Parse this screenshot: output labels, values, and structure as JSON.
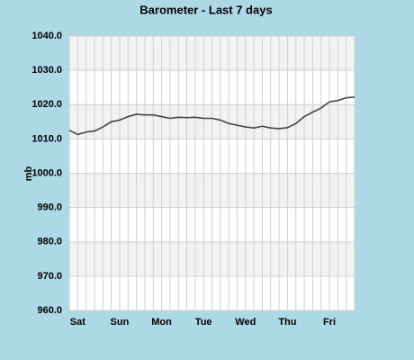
{
  "chart_data": {
    "type": "line",
    "title": "Barometer - Last 7 days",
    "y_label": "mb",
    "categories": [
      null,
      "Sat",
      null,
      null,
      null,
      null,
      "Sun",
      null,
      null,
      null,
      null,
      "Mon",
      null,
      null,
      null,
      null,
      "Tue",
      null,
      null,
      null,
      null,
      "Wed",
      null,
      null,
      null,
      null,
      "Thu",
      null,
      null,
      null,
      null,
      "Fri",
      null,
      null,
      null
    ],
    "values": [
      1012.5,
      1011.3,
      1012,
      1012.3,
      1013.5,
      1015,
      1015.5,
      1016.5,
      1017.2,
      1017,
      1017,
      1016.5,
      1016,
      1016.3,
      1016.2,
      1016.3,
      1016,
      1016,
      1015.5,
      1014.5,
      1014,
      1013.5,
      1013.2,
      1013.7,
      1013.2,
      1013,
      1013.3,
      1014.5,
      1016.5,
      1017.8,
      1019,
      1020.8,
      1021.2,
      1022,
      1022.2
    ],
    "color": "#444444",
    "ylim": [
      960,
      1040
    ],
    "yticks": [
      {
        "value": 960,
        "label": "960.0"
      },
      {
        "value": 970,
        "label": "970.0"
      },
      {
        "value": 980,
        "label": "980.0"
      },
      {
        "value": 990,
        "label": "990.0"
      },
      {
        "value": 1000,
        "label": "1000.0"
      },
      {
        "value": 1010,
        "label": "1010.0"
      },
      {
        "value": 1020,
        "label": "1020.0"
      },
      {
        "value": 1030,
        "label": "1030.0"
      },
      {
        "value": 1040,
        "label": "1040.0"
      }
    ],
    "grid": true
  }
}
